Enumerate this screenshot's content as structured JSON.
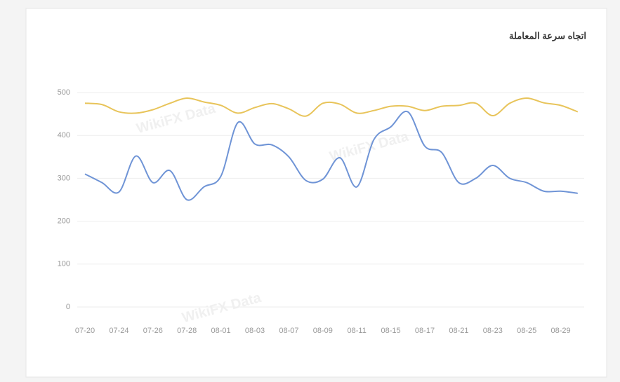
{
  "chart_data": {
    "type": "line",
    "title": "اتجاه سرعة المعاملة",
    "watermark": "WikiFX Data",
    "categories": [
      "07-20",
      null,
      "07-24",
      null,
      "07-26",
      null,
      "07-28",
      null,
      "08-01",
      null,
      "08-03",
      null,
      "08-07",
      null,
      "08-09",
      null,
      "08-11",
      null,
      "08-15",
      null,
      "08-17",
      null,
      "08-21",
      null,
      "08-23",
      null,
      "08-25",
      null,
      "08-29",
      null
    ],
    "series": [
      {
        "color": "#e8c45a",
        "values": [
          475,
          472,
          455,
          452,
          460,
          475,
          487,
          478,
          470,
          452,
          465,
          474,
          462,
          445,
          475,
          473,
          452,
          458,
          468,
          468,
          458,
          468,
          470,
          475,
          446,
          475,
          487,
          476,
          470,
          455
        ]
      },
      {
        "color": "#6f94d6",
        "values": [
          310,
          290,
          268,
          352,
          290,
          318,
          250,
          280,
          305,
          430,
          380,
          378,
          350,
          295,
          298,
          348,
          280,
          390,
          420,
          455,
          375,
          360,
          290,
          300,
          330,
          300,
          290,
          270,
          270,
          265
        ]
      }
    ],
    "ylim": [
      0,
      500
    ],
    "yticks": [
      0,
      100,
      200,
      300,
      400,
      500
    ],
    "grid": true
  }
}
